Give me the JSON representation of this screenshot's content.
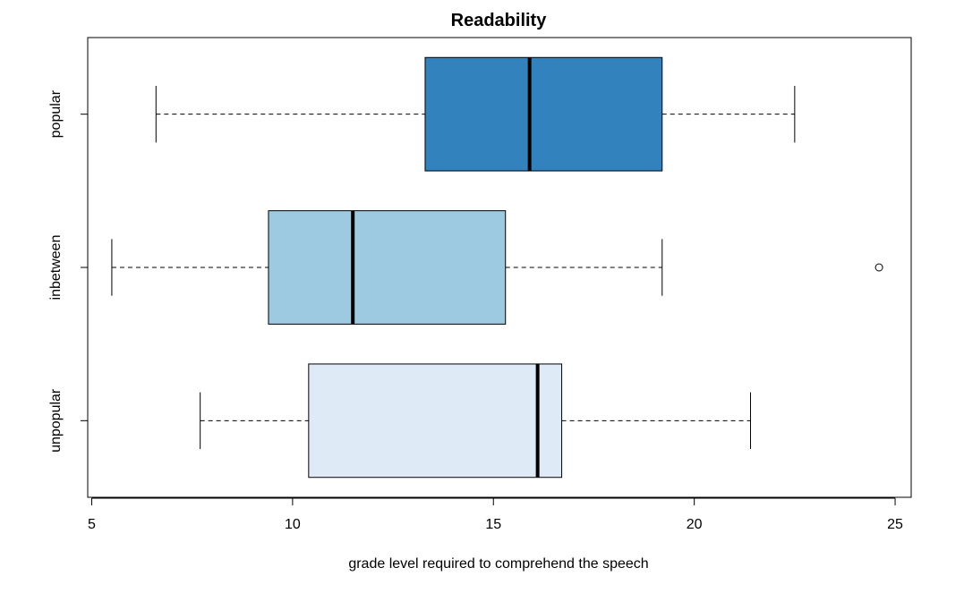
{
  "chart_data": {
    "type": "boxplot",
    "orientation": "horizontal",
    "title": "Readability",
    "xlabel": "grade level required to comprehend the speech",
    "ylabel": "",
    "xlim": [
      4.9,
      25.4
    ],
    "x_ticks": [
      5,
      10,
      15,
      20,
      25
    ],
    "grid": false,
    "legend": "none",
    "groups": [
      {
        "label": "popular",
        "whisker_low": 6.6,
        "q1": 13.3,
        "median": 15.9,
        "q3": 19.2,
        "whisker_high": 22.5,
        "outliers": [],
        "color": "#3182BD"
      },
      {
        "label": "inbetween",
        "whisker_low": 5.5,
        "q1": 9.4,
        "median": 11.5,
        "q3": 15.3,
        "whisker_high": 19.2,
        "outliers": [
          24.6
        ],
        "color": "#9ECAE1"
      },
      {
        "label": "unpopular",
        "whisker_low": 7.7,
        "q1": 10.4,
        "median": 16.1,
        "q3": 16.7,
        "whisker_high": 21.4,
        "outliers": [],
        "color": "#DEEBF7"
      }
    ]
  }
}
